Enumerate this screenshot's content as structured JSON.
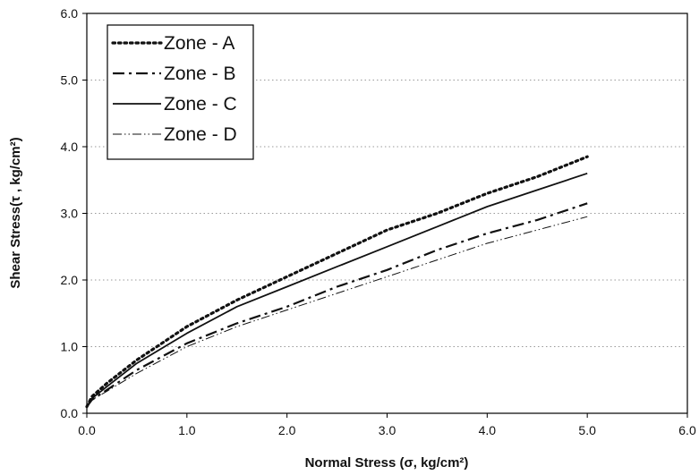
{
  "chart_data": {
    "type": "line",
    "xlabel": "Normal Stress (σ, kg/cm²)",
    "ylabel": "Shear Stress(τ , kg/cm²)",
    "xlim": [
      0,
      6
    ],
    "ylim": [
      0,
      6
    ],
    "xticks": [
      "0.0",
      "1.0",
      "2.0",
      "3.0",
      "4.0",
      "5.0",
      "6.0"
    ],
    "yticks": [
      "0.0",
      "1.0",
      "2.0",
      "3.0",
      "4.0",
      "5.0",
      "6.0"
    ],
    "grid": "horizontal dotted",
    "legend_position": "top-left",
    "series": [
      {
        "name": "Zone - A",
        "style": "dotted-bold",
        "x": [
          0,
          0.05,
          0.2,
          0.5,
          1.0,
          1.5,
          2.0,
          2.5,
          3.0,
          3.5,
          4.0,
          4.5,
          5.0
        ],
        "y": [
          0.1,
          0.25,
          0.45,
          0.8,
          1.3,
          1.7,
          2.05,
          2.4,
          2.75,
          3.0,
          3.3,
          3.55,
          3.85
        ]
      },
      {
        "name": "Zone - B",
        "style": "dash-dot",
        "x": [
          0,
          0.05,
          0.2,
          0.5,
          1.0,
          1.5,
          2.0,
          2.5,
          3.0,
          3.5,
          4.0,
          4.5,
          5.0
        ],
        "y": [
          0.1,
          0.2,
          0.35,
          0.65,
          1.05,
          1.35,
          1.6,
          1.9,
          2.15,
          2.45,
          2.7,
          2.9,
          3.15
        ]
      },
      {
        "name": "Zone - C",
        "style": "solid",
        "x": [
          0,
          0.05,
          0.2,
          0.5,
          1.0,
          1.5,
          2.0,
          2.5,
          3.0,
          3.5,
          4.0,
          4.5,
          5.0
        ],
        "y": [
          0.1,
          0.22,
          0.4,
          0.75,
          1.2,
          1.6,
          1.9,
          2.2,
          2.5,
          2.8,
          3.1,
          3.35,
          3.6
        ]
      },
      {
        "name": "Zone - D",
        "style": "dash-dot-dot",
        "x": [
          0,
          0.05,
          0.2,
          0.5,
          1.0,
          1.5,
          2.0,
          2.5,
          3.0,
          3.5,
          4.0,
          4.5,
          5.0
        ],
        "y": [
          0.1,
          0.2,
          0.33,
          0.6,
          1.0,
          1.3,
          1.55,
          1.8,
          2.05,
          2.3,
          2.55,
          2.75,
          2.95
        ]
      }
    ]
  }
}
